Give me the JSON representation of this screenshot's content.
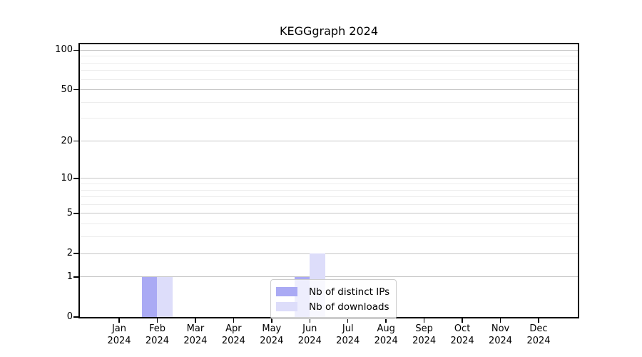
{
  "chart_data": {
    "type": "bar",
    "title": "KEGGgraph 2024",
    "categories": [
      "Jan 2024",
      "Feb 2024",
      "Mar 2024",
      "Apr 2024",
      "May 2024",
      "Jun 2024",
      "Jul 2024",
      "Aug 2024",
      "Sep 2024",
      "Oct 2024",
      "Nov 2024",
      "Dec 2024"
    ],
    "series": [
      {
        "name": "Nb of distinct IPs",
        "color": "#aaaaf4",
        "values": [
          0,
          1,
          0,
          0,
          0,
          1,
          0,
          0,
          0,
          0,
          0,
          0
        ]
      },
      {
        "name": "Nb of downloads",
        "color": "#ddddfa",
        "values": [
          0,
          1,
          0,
          0,
          0,
          2,
          0,
          0,
          0,
          0,
          0,
          0
        ]
      }
    ],
    "xlabel": "",
    "ylabel": "",
    "yscale": "log1p",
    "ylim": [
      0,
      100
    ],
    "yticks": [
      0,
      1,
      2,
      5,
      10,
      20,
      50,
      100
    ],
    "minor_yticks": [
      3,
      4,
      6,
      7,
      8,
      9,
      30,
      40,
      60,
      70,
      80,
      90
    ],
    "grid": "on",
    "legend_position": "lower-center-inside"
  },
  "colors": {
    "grid_major": "#c6c6c6",
    "grid_minor": "#ededed",
    "axis": "#000000",
    "legend_border": "#cccccc",
    "background": "#ffffff"
  }
}
